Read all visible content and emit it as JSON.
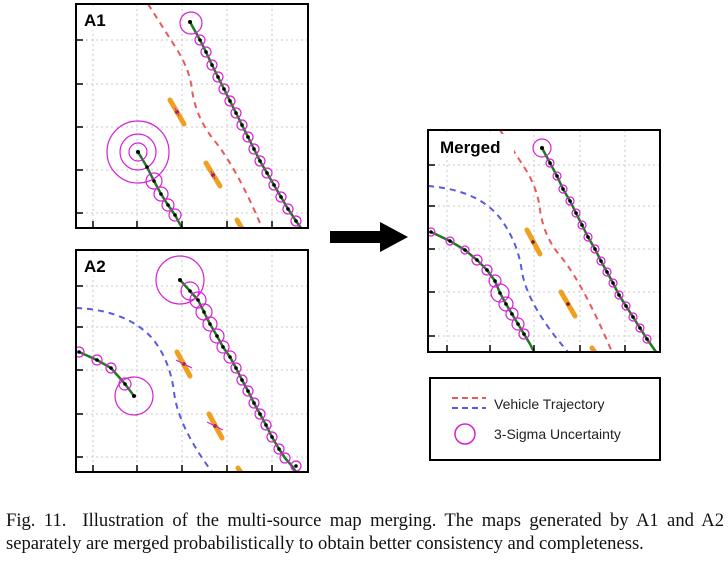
{
  "figure": {
    "panels": [
      {
        "id": "a1",
        "label": "A1"
      },
      {
        "id": "a2",
        "label": "A2"
      },
      {
        "id": "merged",
        "label": "Merged"
      }
    ],
    "legend": {
      "items": [
        {
          "label": "Vehicle Trajectory",
          "style": "dashed",
          "colors": [
            "#e8595a",
            "#5a5ae0"
          ]
        },
        {
          "label": "3-Sigma Uncertainty",
          "style": "circle",
          "colors": [
            "#d61fd6"
          ]
        }
      ]
    },
    "colors": {
      "road_line": "#1f7a1f",
      "landmark": "#f0a020",
      "uncertainty": "#d61fd6",
      "trajectory_a1": "#e8595a",
      "trajectory_a2": "#5a5ae0",
      "grid": "#c8c8c8"
    }
  },
  "caption": {
    "label": "Fig. 11.",
    "text": "Illustration of the multi-source map merging. The maps generated by A1 and A2 separately are merged probabilistically to obtain better consistency and completeness."
  }
}
